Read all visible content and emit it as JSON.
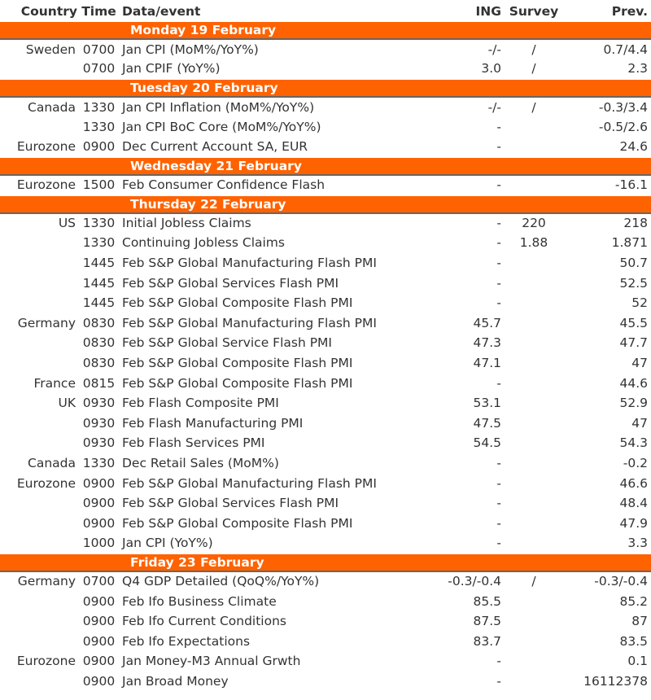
{
  "header": {
    "country": "Country",
    "time": "Time",
    "event": "Data/event",
    "ing": "ING",
    "survey": "Survey",
    "prev": "Prev."
  },
  "colors": {
    "accent": "#ff6200",
    "text": "#333333"
  },
  "days": [
    {
      "label": "Monday 19 February",
      "events": [
        {
          "country": "Sweden",
          "time": "0700",
          "event": "Jan CPI (MoM%/YoY%)",
          "ing": "-/-",
          "survey": "/",
          "prev": "0.7/4.4"
        },
        {
          "country": "",
          "time": "0700",
          "event": "Jan CPIF (YoY%)",
          "ing": "3.0",
          "survey": "/",
          "prev": "2.3"
        }
      ]
    },
    {
      "label": "Tuesday 20 February",
      "events": [
        {
          "country": "Canada",
          "time": "1330",
          "event": "Jan CPI Inflation (MoM%/YoY%)",
          "ing": "-/-",
          "survey": "/",
          "prev": "-0.3/3.4"
        },
        {
          "country": "",
          "time": "1330",
          "event": "Jan CPI BoC Core (MoM%/YoY%)",
          "ing": "-",
          "survey": "",
          "prev": "-0.5/2.6"
        },
        {
          "country": "Eurozone",
          "time": "0900",
          "event": "Dec Current Account SA, EUR",
          "ing": "-",
          "survey": "",
          "prev": "24.6"
        }
      ]
    },
    {
      "label": "Wednesday 21 February",
      "events": [
        {
          "country": "Eurozone",
          "time": "1500",
          "event": "Feb Consumer Confidence Flash",
          "ing": "-",
          "survey": "",
          "prev": "-16.1"
        }
      ]
    },
    {
      "label": "Thursday 22 February",
      "events": [
        {
          "country": "US",
          "time": "1330",
          "event": "Initial Jobless Claims",
          "ing": "-",
          "survey": "220",
          "prev": "218"
        },
        {
          "country": "",
          "time": "1330",
          "event": "Continuing Jobless Claims",
          "ing": "-",
          "survey": "1.88",
          "prev": "1.871"
        },
        {
          "country": "",
          "time": "1445",
          "event": "Feb S&P Global Manufacturing Flash PMI",
          "ing": "-",
          "survey": "",
          "prev": "50.7"
        },
        {
          "country": "",
          "time": "1445",
          "event": "Feb S&P Global Services Flash PMI",
          "ing": "-",
          "survey": "",
          "prev": "52.5"
        },
        {
          "country": "",
          "time": "1445",
          "event": "Feb S&P Global Composite Flash PMI",
          "ing": "-",
          "survey": "",
          "prev": "52"
        },
        {
          "country": "Germany",
          "time": "0830",
          "event": "Feb S&P Global Manufacturing Flash PMI",
          "ing": "45.7",
          "survey": "",
          "prev": "45.5"
        },
        {
          "country": "",
          "time": "0830",
          "event": "Feb S&P Global Service Flash PMI",
          "ing": "47.3",
          "survey": "",
          "prev": "47.7"
        },
        {
          "country": "",
          "time": "0830",
          "event": "Feb S&P Global Composite Flash PMI",
          "ing": "47.1",
          "survey": "",
          "prev": "47"
        },
        {
          "country": "France",
          "time": "0815",
          "event": "Feb S&P Global Composite Flash PMI",
          "ing": "-",
          "survey": "",
          "prev": "44.6"
        },
        {
          "country": "UK",
          "time": "0930",
          "event": "Feb Flash Composite PMI",
          "ing": "53.1",
          "survey": "",
          "prev": "52.9"
        },
        {
          "country": "",
          "time": "0930",
          "event": "Feb Flash Manufacturing PMI",
          "ing": "47.5",
          "survey": "",
          "prev": "47"
        },
        {
          "country": "",
          "time": "0930",
          "event": "Feb Flash Services PMI",
          "ing": "54.5",
          "survey": "",
          "prev": "54.3"
        },
        {
          "country": "Canada",
          "time": "1330",
          "event": "Dec Retail Sales (MoM%)",
          "ing": "-",
          "survey": "",
          "prev": "-0.2"
        },
        {
          "country": "Eurozone",
          "time": "0900",
          "event": "Feb S&P Global Manufacturing Flash PMI",
          "ing": "-",
          "survey": "",
          "prev": "46.6"
        },
        {
          "country": "",
          "time": "0900",
          "event": "Feb S&P Global Services Flash PMI",
          "ing": "-",
          "survey": "",
          "prev": "48.4"
        },
        {
          "country": "",
          "time": "0900",
          "event": "Feb S&P Global Composite Flash PMI",
          "ing": "-",
          "survey": "",
          "prev": "47.9"
        },
        {
          "country": "",
          "time": "1000",
          "event": "Jan CPI (YoY%)",
          "ing": "-",
          "survey": "",
          "prev": "3.3"
        }
      ]
    },
    {
      "label": "Friday 23 February",
      "events": [
        {
          "country": "Germany",
          "time": "0700",
          "event": "Q4 GDP Detailed (QoQ%/YoY%)",
          "ing": "-0.3/-0.4",
          "survey": "/",
          "prev": "-0.3/-0.4"
        },
        {
          "country": "",
          "time": "0900",
          "event": "Feb Ifo Business Climate",
          "ing": "85.5",
          "survey": "",
          "prev": "85.2"
        },
        {
          "country": "",
          "time": "0900",
          "event": "Feb Ifo Current Conditions",
          "ing": "87.5",
          "survey": "",
          "prev": "87"
        },
        {
          "country": "",
          "time": "0900",
          "event": "Feb Ifo Expectations",
          "ing": "83.7",
          "survey": "",
          "prev": "83.5"
        },
        {
          "country": "Eurozone",
          "time": "0900",
          "event": "Jan Money-M3 Annual Grwth",
          "ing": "-",
          "survey": "",
          "prev": "0.1"
        },
        {
          "country": "",
          "time": "0900",
          "event": "Jan Broad Money",
          "ing": "-",
          "survey": "",
          "prev": "16112378"
        }
      ]
    }
  ]
}
